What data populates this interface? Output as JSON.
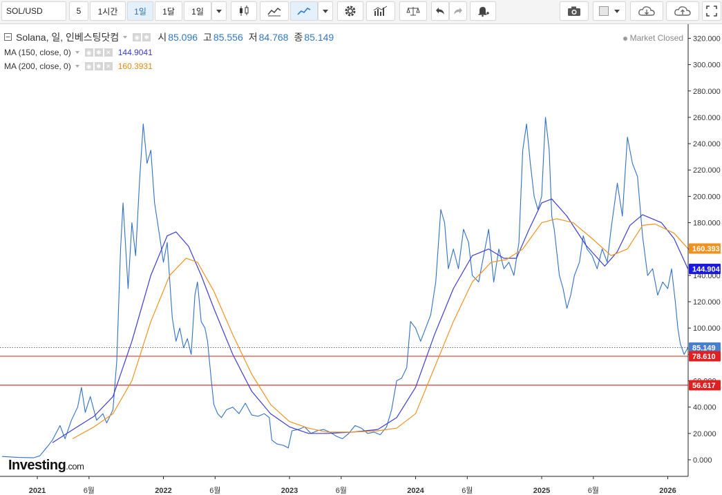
{
  "toolbar": {
    "symbol": "SOL/USD",
    "interval_number": "5",
    "interval_buttons": [
      "1시간",
      "1일",
      "1달",
      "1일"
    ],
    "active_interval": "1일",
    "icons": [
      "candlestick-icon",
      "area-chart-icon",
      "line-chart-icon",
      "dropdown-caret-icon",
      "settings-gear-icon",
      "indicators-icon",
      "compare-scale-icon",
      "undo-icon",
      "redo-icon",
      "alert-bell-icon",
      "camera-icon",
      "color-swatch-icon",
      "cloud-download-icon",
      "cloud-upload-icon",
      "fullscreen-icon"
    ]
  },
  "legend": {
    "title": "Solana, 일, 인베스팅닷컴",
    "ohlc": [
      {
        "label": "시",
        "value": "85.096"
      },
      {
        "label": "고",
        "value": "85.556"
      },
      {
        "label": "저",
        "value": "84.768"
      },
      {
        "label": "종",
        "value": "85.149"
      }
    ],
    "ma": [
      {
        "label": "MA (150, close, 0)",
        "value": "144.9041",
        "color": "#3b3bd6"
      },
      {
        "label": "MA (200, close, 0)",
        "value": "160.3931",
        "color": "#f0921e"
      }
    ]
  },
  "market_status": "Market Closed",
  "logo": {
    "main": "Investing",
    "suffix": ".com"
  },
  "chart_data": {
    "type": "line",
    "ylim": [
      -20,
      330
    ],
    "y_ticks": [
      {
        "value": 0,
        "label": "0.000"
      },
      {
        "value": 20,
        "label": "20.000"
      },
      {
        "value": 40,
        "label": "40.000"
      },
      {
        "value": 60,
        "label": "60.000"
      },
      {
        "value": 80,
        "label": "80.000"
      },
      {
        "value": 100,
        "label": "100.000"
      },
      {
        "value": 120,
        "label": "120.000"
      },
      {
        "value": 140,
        "label": "140.000"
      },
      {
        "value": 160,
        "label": "160.000"
      },
      {
        "value": 180,
        "label": "180.000"
      },
      {
        "value": 200,
        "label": "200.000"
      },
      {
        "value": 220,
        "label": "220.000"
      },
      {
        "value": 240,
        "label": "240.000"
      },
      {
        "value": 260,
        "label": "260.000"
      },
      {
        "value": 280,
        "label": "280.000"
      },
      {
        "value": 300,
        "label": "300.000"
      },
      {
        "value": 320,
        "label": "320.000"
      }
    ],
    "x_ticks": [
      {
        "t": 2021.0,
        "label": "2021",
        "bold": true
      },
      {
        "t": 2021.41,
        "label": "6월",
        "bold": false
      },
      {
        "t": 2022.0,
        "label": "2022",
        "bold": true
      },
      {
        "t": 2022.41,
        "label": "6월",
        "bold": false
      },
      {
        "t": 2023.0,
        "label": "2023",
        "bold": true
      },
      {
        "t": 2023.41,
        "label": "6월",
        "bold": false
      },
      {
        "t": 2024.0,
        "label": "2024",
        "bold": true
      },
      {
        "t": 2024.41,
        "label": "6월",
        "bold": false
      },
      {
        "t": 2025.0,
        "label": "2025",
        "bold": true
      },
      {
        "t": 2025.41,
        "label": "6월",
        "bold": false
      },
      {
        "t": 2026.0,
        "label": "2026",
        "bold": true
      }
    ],
    "xlim": [
      2020.72,
      2026.22
    ],
    "series": [
      {
        "name": "Solana",
        "color": "#2f6fc6",
        "points": [
          [
            2020.72,
            2.5
          ],
          [
            2020.85,
            1.8
          ],
          [
            2020.97,
            1.5
          ],
          [
            2021.02,
            3
          ],
          [
            2021.08,
            10
          ],
          [
            2021.12,
            15
          ],
          [
            2021.18,
            26
          ],
          [
            2021.22,
            16
          ],
          [
            2021.27,
            30
          ],
          [
            2021.32,
            40
          ],
          [
            2021.35,
            55
          ],
          [
            2021.38,
            36
          ],
          [
            2021.42,
            48
          ],
          [
            2021.47,
            30
          ],
          [
            2021.52,
            35
          ],
          [
            2021.55,
            28
          ],
          [
            2021.6,
            38
          ],
          [
            2021.63,
            75
          ],
          [
            2021.66,
            160
          ],
          [
            2021.68,
            195
          ],
          [
            2021.72,
            130
          ],
          [
            2021.75,
            180
          ],
          [
            2021.78,
            155
          ],
          [
            2021.81,
            210
          ],
          [
            2021.84,
            255
          ],
          [
            2021.87,
            225
          ],
          [
            2021.9,
            235
          ],
          [
            2021.93,
            195
          ],
          [
            2021.97,
            170
          ],
          [
            2022.0,
            150
          ],
          [
            2022.03,
            165
          ],
          [
            2022.07,
            108
          ],
          [
            2022.1,
            90
          ],
          [
            2022.13,
            100
          ],
          [
            2022.16,
            85
          ],
          [
            2022.19,
            92
          ],
          [
            2022.22,
            80
          ],
          [
            2022.25,
            125
          ],
          [
            2022.27,
            135
          ],
          [
            2022.3,
            105
          ],
          [
            2022.33,
            100
          ],
          [
            2022.35,
            90
          ],
          [
            2022.38,
            60
          ],
          [
            2022.4,
            42
          ],
          [
            2022.43,
            35
          ],
          [
            2022.46,
            32
          ],
          [
            2022.5,
            38
          ],
          [
            2022.55,
            40
          ],
          [
            2022.6,
            35
          ],
          [
            2022.65,
            43
          ],
          [
            2022.7,
            34
          ],
          [
            2022.75,
            33
          ],
          [
            2022.8,
            35
          ],
          [
            2022.84,
            32
          ],
          [
            2022.86,
            15
          ],
          [
            2022.9,
            12
          ],
          [
            2022.95,
            11
          ],
          [
            2022.99,
            9
          ],
          [
            2023.02,
            22
          ],
          [
            2023.07,
            23
          ],
          [
            2023.12,
            25
          ],
          [
            2023.17,
            20
          ],
          [
            2023.22,
            22
          ],
          [
            2023.27,
            23
          ],
          [
            2023.32,
            21
          ],
          [
            2023.37,
            18
          ],
          [
            2023.42,
            16
          ],
          [
            2023.47,
            20
          ],
          [
            2023.52,
            26
          ],
          [
            2023.57,
            24
          ],
          [
            2023.62,
            20
          ],
          [
            2023.67,
            21
          ],
          [
            2023.72,
            19
          ],
          [
            2023.77,
            25
          ],
          [
            2023.81,
            38
          ],
          [
            2023.85,
            60
          ],
          [
            2023.89,
            62
          ],
          [
            2023.93,
            70
          ],
          [
            2023.96,
            105
          ],
          [
            2024.0,
            100
          ],
          [
            2024.04,
            90
          ],
          [
            2024.08,
            100
          ],
          [
            2024.12,
            110
          ],
          [
            2024.16,
            135
          ],
          [
            2024.2,
            190
          ],
          [
            2024.23,
            180
          ],
          [
            2024.26,
            145
          ],
          [
            2024.3,
            160
          ],
          [
            2024.34,
            145
          ],
          [
            2024.38,
            175
          ],
          [
            2024.42,
            165
          ],
          [
            2024.45,
            140
          ],
          [
            2024.5,
            135
          ],
          [
            2024.53,
            150
          ],
          [
            2024.58,
            175
          ],
          [
            2024.62,
            135
          ],
          [
            2024.66,
            160
          ],
          [
            2024.7,
            145
          ],
          [
            2024.74,
            150
          ],
          [
            2024.78,
            140
          ],
          [
            2024.82,
            165
          ],
          [
            2024.85,
            235
          ],
          [
            2024.88,
            255
          ],
          [
            2024.91,
            225
          ],
          [
            2024.94,
            200
          ],
          [
            2024.97,
            190
          ],
          [
            2025.0,
            200
          ],
          [
            2025.03,
            260
          ],
          [
            2025.06,
            235
          ],
          [
            2025.08,
            185
          ],
          [
            2025.1,
            175
          ],
          [
            2025.14,
            140
          ],
          [
            2025.17,
            130
          ],
          [
            2025.2,
            115
          ],
          [
            2025.23,
            125
          ],
          [
            2025.26,
            140
          ],
          [
            2025.3,
            150
          ],
          [
            2025.33,
            170
          ],
          [
            2025.36,
            160
          ],
          [
            2025.4,
            155
          ],
          [
            2025.44,
            145
          ],
          [
            2025.48,
            160
          ],
          [
            2025.52,
            150
          ],
          [
            2025.55,
            175
          ],
          [
            2025.6,
            210
          ],
          [
            2025.64,
            185
          ],
          [
            2025.68,
            245
          ],
          [
            2025.72,
            225
          ],
          [
            2025.76,
            215
          ],
          [
            2025.8,
            170
          ],
          [
            2025.84,
            140
          ],
          [
            2025.88,
            145
          ],
          [
            2025.92,
            125
          ],
          [
            2025.96,
            135
          ],
          [
            2026.0,
            130
          ],
          [
            2026.03,
            145
          ],
          [
            2026.06,
            120
          ],
          [
            2026.08,
            100
          ],
          [
            2026.1,
            88
          ],
          [
            2026.13,
            80
          ],
          [
            2026.16,
            85.149
          ]
        ]
      },
      {
        "name": "MA (150, close, 0)",
        "color": "#3b3bd6",
        "points": [
          [
            2021.12,
            13
          ],
          [
            2021.3,
            24
          ],
          [
            2021.45,
            33
          ],
          [
            2021.6,
            48
          ],
          [
            2021.75,
            90
          ],
          [
            2021.9,
            140
          ],
          [
            2022.03,
            170
          ],
          [
            2022.1,
            173
          ],
          [
            2022.2,
            162
          ],
          [
            2022.3,
            140
          ],
          [
            2022.4,
            115
          ],
          [
            2022.55,
            80
          ],
          [
            2022.7,
            52
          ],
          [
            2022.85,
            35
          ],
          [
            2023.0,
            25
          ],
          [
            2023.15,
            20
          ],
          [
            2023.3,
            20
          ],
          [
            2023.5,
            21
          ],
          [
            2023.7,
            23
          ],
          [
            2023.85,
            32
          ],
          [
            2024.0,
            55
          ],
          [
            2024.15,
            95
          ],
          [
            2024.3,
            130
          ],
          [
            2024.45,
            155
          ],
          [
            2024.58,
            160
          ],
          [
            2024.7,
            153
          ],
          [
            2024.8,
            153
          ],
          [
            2024.9,
            175
          ],
          [
            2025.0,
            195
          ],
          [
            2025.08,
            198
          ],
          [
            2025.2,
            185
          ],
          [
            2025.35,
            163
          ],
          [
            2025.5,
            147
          ],
          [
            2025.6,
            158
          ],
          [
            2025.7,
            178
          ],
          [
            2025.8,
            186
          ],
          [
            2025.95,
            180
          ],
          [
            2026.05,
            168
          ],
          [
            2026.16,
            144.9
          ]
        ]
      },
      {
        "name": "MA (200, close, 0)",
        "color": "#f0921e",
        "points": [
          [
            2021.28,
            16
          ],
          [
            2021.45,
            25
          ],
          [
            2021.6,
            35
          ],
          [
            2021.75,
            60
          ],
          [
            2021.9,
            105
          ],
          [
            2022.05,
            140
          ],
          [
            2022.18,
            153
          ],
          [
            2022.27,
            150
          ],
          [
            2022.4,
            128
          ],
          [
            2022.55,
            95
          ],
          [
            2022.7,
            65
          ],
          [
            2022.85,
            42
          ],
          [
            2023.0,
            29
          ],
          [
            2023.15,
            24
          ],
          [
            2023.3,
            21
          ],
          [
            2023.5,
            21
          ],
          [
            2023.7,
            22
          ],
          [
            2023.85,
            24
          ],
          [
            2024.0,
            35
          ],
          [
            2024.15,
            70
          ],
          [
            2024.3,
            105
          ],
          [
            2024.45,
            135
          ],
          [
            2024.6,
            150
          ],
          [
            2024.72,
            152
          ],
          [
            2024.85,
            160
          ],
          [
            2025.0,
            180
          ],
          [
            2025.12,
            183
          ],
          [
            2025.25,
            180
          ],
          [
            2025.4,
            168
          ],
          [
            2025.55,
            155
          ],
          [
            2025.68,
            160
          ],
          [
            2025.8,
            178
          ],
          [
            2025.9,
            179
          ],
          [
            2026.05,
            172
          ],
          [
            2026.16,
            160.39
          ]
        ]
      }
    ],
    "price_tags": [
      {
        "value": 160.393,
        "label": "160.393",
        "color": "#f0921e",
        "text_color": "#ffffff"
      },
      {
        "value": 144.904,
        "label": "144.904",
        "color": "#1a1ae0",
        "text_color": "#ffffff"
      },
      {
        "value": 85.149,
        "label": "85.149",
        "color": "#4a7fd0",
        "text_color": "#ffffff"
      },
      {
        "value": 78.61,
        "label": "78.610",
        "color": "#e02020",
        "text_color": "#ffffff"
      },
      {
        "value": 56.617,
        "label": "56.617",
        "color": "#e02020",
        "text_color": "#ffffff"
      }
    ],
    "horizontal_lines": [
      {
        "value": 85.149,
        "style": "dotted",
        "color": "#333333"
      },
      {
        "value": 78.61,
        "style": "solid",
        "color": "#d81c1c"
      },
      {
        "value": 56.617,
        "style": "solid",
        "color": "#d81c1c"
      }
    ]
  }
}
